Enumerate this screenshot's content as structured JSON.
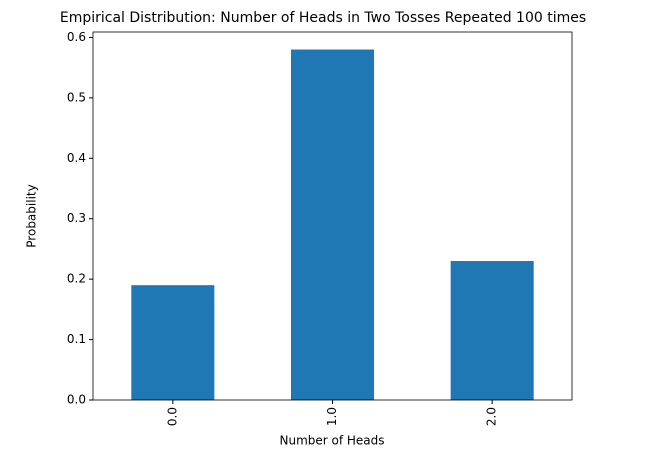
{
  "chart_data": {
    "type": "bar",
    "title": "Empirical Distribution: Number of Heads in Two Tosses Repeated 100 times",
    "x_label": "Number of Heads",
    "y_label": "Probability",
    "categories": [
      "0.0",
      "1.0",
      "2.0"
    ],
    "values": [
      0.19,
      0.58,
      0.23
    ],
    "color": "#1f77b4",
    "ylim": [
      0,
      0.609
    ],
    "yticks": [
      {
        "value": 0,
        "label": "0.0"
      },
      0.1,
      0.2,
      0.3,
      0.4,
      0.5,
      0.6
    ]
  }
}
